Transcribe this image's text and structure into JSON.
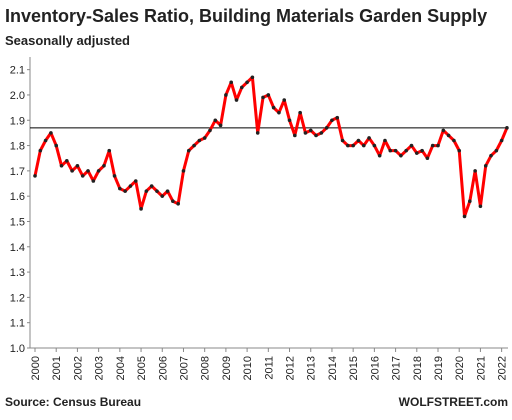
{
  "chart_data": {
    "type": "line",
    "title": "Inventory-Sales Ratio, Building Materials Garden Supply",
    "subtitle": "Seasonally adjusted",
    "source": "Source: Census Bureau",
    "watermark": "WOLFSTREET.com",
    "x": [
      2000,
      2000.25,
      2000.5,
      2000.75,
      2001,
      2001.25,
      2001.5,
      2001.75,
      2002,
      2002.25,
      2002.5,
      2002.75,
      2003,
      2003.25,
      2003.5,
      2003.75,
      2004,
      2004.25,
      2004.5,
      2004.75,
      2005,
      2005.25,
      2005.5,
      2005.75,
      2006,
      2006.25,
      2006.5,
      2006.75,
      2007,
      2007.25,
      2007.5,
      2007.75,
      2008,
      2008.25,
      2008.5,
      2008.75,
      2009,
      2009.25,
      2009.5,
      2009.75,
      2010,
      2010.25,
      2010.5,
      2010.75,
      2011,
      2011.25,
      2011.5,
      2011.75,
      2012,
      2012.25,
      2012.5,
      2012.75,
      2013,
      2013.25,
      2013.5,
      2013.75,
      2014,
      2014.25,
      2014.5,
      2014.75,
      2015,
      2015.25,
      2015.5,
      2015.75,
      2016,
      2016.25,
      2016.5,
      2016.75,
      2017,
      2017.25,
      2017.5,
      2017.75,
      2018,
      2018.25,
      2018.5,
      2018.75,
      2019,
      2019.25,
      2019.5,
      2019.75,
      2020,
      2020.25,
      2020.5,
      2020.75,
      2021,
      2021.25,
      2021.5,
      2021.75,
      2022,
      2022.25
    ],
    "series": [
      {
        "color": "#ff0000",
        "marker_color": "#222222",
        "values": [
          1.68,
          1.78,
          1.82,
          1.85,
          1.8,
          1.72,
          1.74,
          1.7,
          1.72,
          1.68,
          1.7,
          1.66,
          1.7,
          1.72,
          1.78,
          1.68,
          1.63,
          1.62,
          1.64,
          1.66,
          1.55,
          1.62,
          1.64,
          1.62,
          1.6,
          1.62,
          1.58,
          1.57,
          1.7,
          1.78,
          1.8,
          1.82,
          1.83,
          1.86,
          1.9,
          1.88,
          2.0,
          2.05,
          1.98,
          2.03,
          2.05,
          2.07,
          1.85,
          1.99,
          2.0,
          1.95,
          1.93,
          1.98,
          1.9,
          1.84,
          1.93,
          1.85,
          1.86,
          1.84,
          1.85,
          1.87,
          1.9,
          1.91,
          1.82,
          1.8,
          1.8,
          1.82,
          1.8,
          1.83,
          1.8,
          1.76,
          1.82,
          1.78,
          1.78,
          1.76,
          1.78,
          1.8,
          1.77,
          1.78,
          1.75,
          1.8,
          1.8,
          1.86,
          1.84,
          1.82,
          1.78,
          1.52,
          1.58,
          1.7,
          1.56,
          1.72,
          1.76,
          1.78,
          1.82,
          1.87
        ]
      }
    ],
    "reference_line": 1.87,
    "xlim": [
      2000,
      2022.3
    ],
    "xticks": [
      2000,
      2001,
      2002,
      2003,
      2004,
      2005,
      2006,
      2007,
      2008,
      2009,
      2010,
      2011,
      2012,
      2013,
      2014,
      2015,
      2016,
      2017,
      2018,
      2019,
      2020,
      2021,
      2022
    ],
    "ylim": [
      1.0,
      2.15
    ],
    "yticks": [
      {
        "value": 1,
        "label": "1.0"
      },
      1.1,
      1.2,
      1.3,
      1.4,
      1.5,
      1.6,
      1.7,
      1.8,
      1.9,
      {
        "value": 2,
        "label": "2.0"
      },
      2.1
    ]
  }
}
